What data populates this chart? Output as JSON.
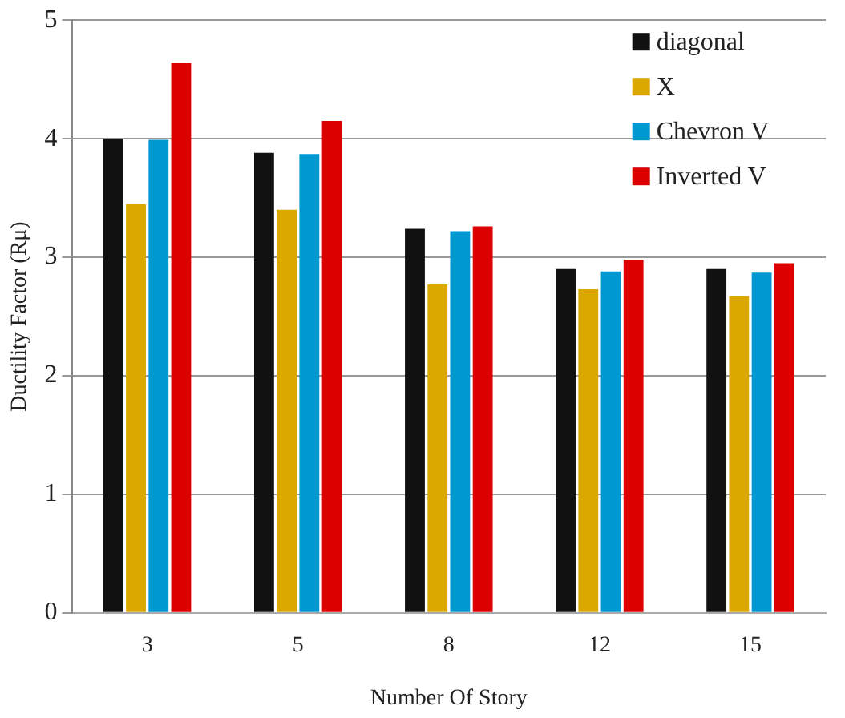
{
  "chart_data": {
    "type": "bar",
    "xlabel": "Number Of Story",
    "ylabel": "Ductility Factor (Rμ)",
    "categories": [
      "3",
      "5",
      "8",
      "12",
      "15"
    ],
    "series": [
      {
        "name": "diagonal",
        "color": "#111111",
        "values": [
          4.0,
          3.88,
          3.24,
          2.9,
          2.9
        ]
      },
      {
        "name": "X",
        "color": "#dba800",
        "values": [
          3.45,
          3.4,
          2.77,
          2.73,
          2.67
        ]
      },
      {
        "name": "Chevron V",
        "color": "#0098d0",
        "values": [
          3.99,
          3.87,
          3.22,
          2.88,
          2.87
        ]
      },
      {
        "name": "Inverted V",
        "color": "#dd0000",
        "values": [
          4.64,
          4.15,
          3.26,
          2.98,
          2.95
        ]
      }
    ],
    "ylim": [
      0,
      5
    ],
    "yticks": [
      0,
      1,
      2,
      3,
      4,
      5
    ],
    "grid": "y",
    "legend": "top right"
  }
}
